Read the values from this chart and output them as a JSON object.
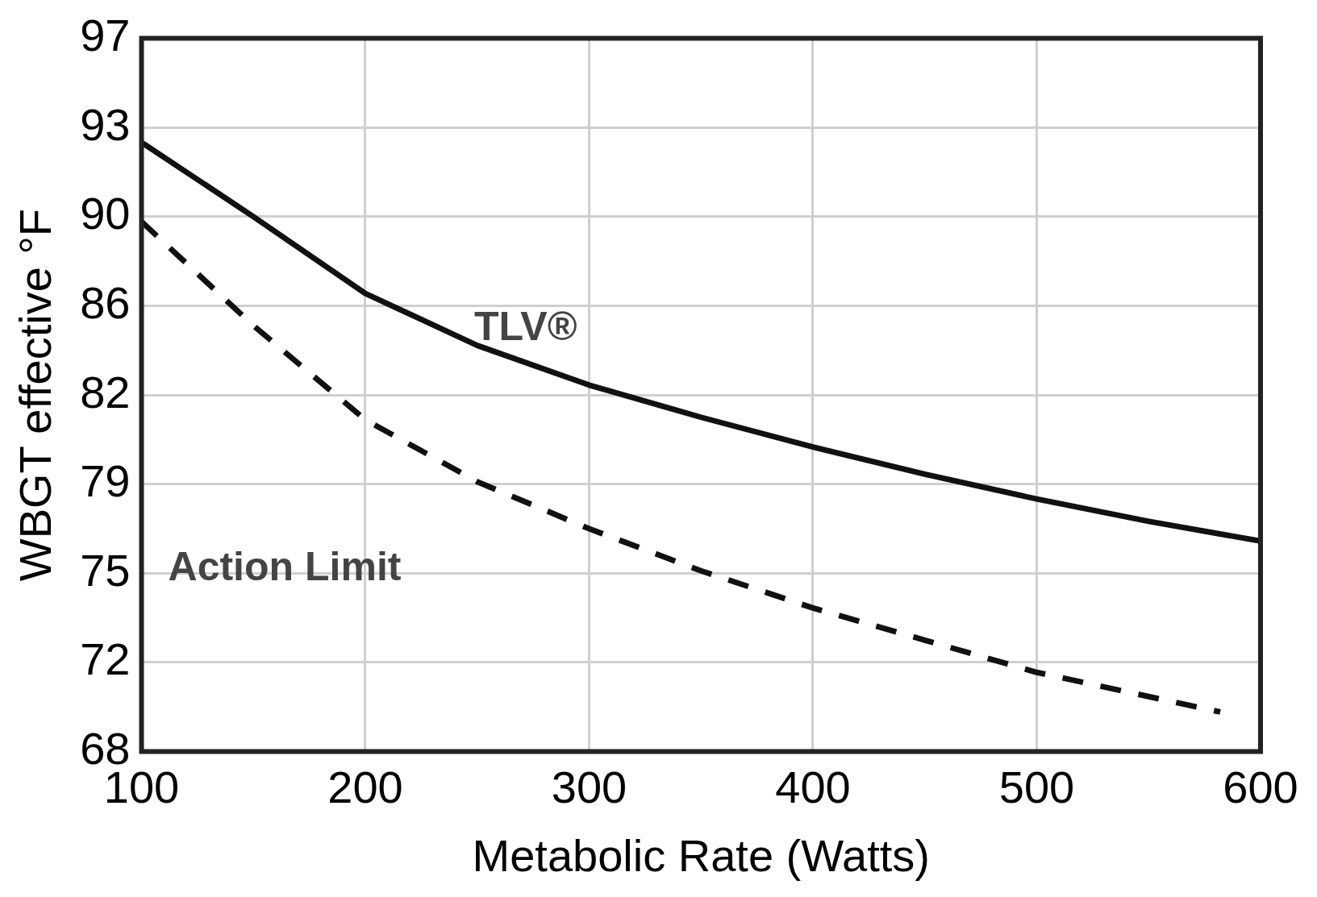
{
  "chart_data": {
    "type": "line",
    "xlabel": "Metabolic Rate (Watts)",
    "ylabel": "WBGT effective °F",
    "xlim": [
      100,
      600
    ],
    "xticks": [
      100,
      200,
      300,
      400,
      500,
      600
    ],
    "ylim": [
      68,
      96.8
    ],
    "yticks": [
      {
        "value": 68,
        "label": "68"
      },
      {
        "value": 71.6,
        "label": "72"
      },
      {
        "value": 75.2,
        "label": "75"
      },
      {
        "value": 78.8,
        "label": "79"
      },
      {
        "value": 82.4,
        "label": "82"
      },
      {
        "value": 86,
        "label": "86"
      },
      {
        "value": 89.6,
        "label": "90"
      },
      {
        "value": 93.2,
        "label": "93"
      },
      {
        "value": 96.8,
        "label": "97"
      }
    ],
    "grid": true,
    "legend": false,
    "marker": "none",
    "series": [
      {
        "name": "TLV®",
        "color": "#111111",
        "line_style": "solid",
        "x": [
          100,
          150,
          200,
          250,
          300,
          350,
          400,
          450,
          500,
          550,
          600
        ],
        "values": [
          92.6,
          89.6,
          86.5,
          84.4,
          82.8,
          81.5,
          80.3,
          79.2,
          78.2,
          77.3,
          76.5
        ]
      },
      {
        "name": "Action Limit",
        "color": "#111111",
        "line_style": "dashed",
        "x": [
          100,
          150,
          200,
          250,
          300,
          350,
          400,
          450,
          500,
          582
        ],
        "values": [
          89.4,
          85.2,
          81.4,
          78.9,
          77.0,
          75.3,
          73.8,
          72.5,
          71.2,
          69.6
        ]
      }
    ]
  }
}
